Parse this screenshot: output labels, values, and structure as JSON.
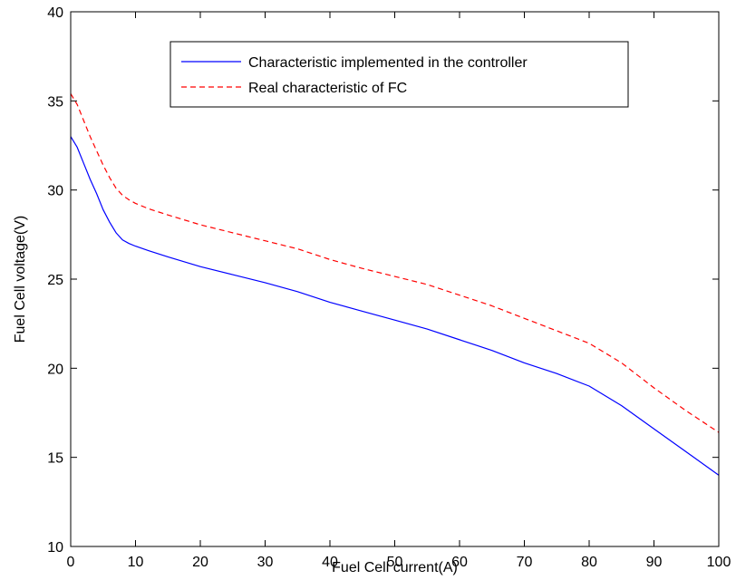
{
  "chart_data": {
    "type": "line",
    "title": "",
    "xlabel": "Fuel Cell current(A)",
    "ylabel": "Fuel Cell voltage(V)",
    "xlim": [
      0,
      100
    ],
    "ylim": [
      10,
      40
    ],
    "xticks": [
      0,
      10,
      20,
      30,
      40,
      50,
      60,
      70,
      80,
      90,
      100
    ],
    "yticks": [
      10,
      15,
      20,
      25,
      30,
      35,
      40
    ],
    "grid": false,
    "legend_position": "top-center",
    "series": [
      {
        "name": "Characteristic implemented in the controller",
        "color": "#0000ff",
        "dash": "solid",
        "x": [
          0,
          1,
          2,
          3,
          4,
          5,
          6,
          7,
          8,
          9,
          10,
          12,
          15,
          20,
          25,
          30,
          35,
          40,
          45,
          50,
          55,
          60,
          65,
          70,
          75,
          80,
          85,
          90,
          95,
          100
        ],
        "y": [
          33.0,
          32.4,
          31.5,
          30.6,
          29.8,
          28.9,
          28.2,
          27.6,
          27.2,
          27.0,
          26.85,
          26.6,
          26.25,
          25.7,
          25.25,
          24.8,
          24.3,
          23.7,
          23.2,
          22.7,
          22.2,
          21.6,
          21.0,
          20.3,
          19.7,
          19.0,
          17.9,
          16.6,
          15.3,
          14.0
        ]
      },
      {
        "name": "Real characteristic of FC",
        "color": "#ff0000",
        "dash": "dashed",
        "x": [
          0,
          1,
          2,
          3,
          4,
          5,
          6,
          7,
          8,
          9,
          10,
          12,
          15,
          20,
          25,
          30,
          35,
          40,
          45,
          50,
          55,
          60,
          65,
          70,
          75,
          80,
          85,
          90,
          95,
          100
        ],
        "y": [
          35.4,
          34.8,
          33.9,
          33.0,
          32.2,
          31.4,
          30.7,
          30.1,
          29.7,
          29.45,
          29.25,
          28.95,
          28.6,
          28.05,
          27.6,
          27.15,
          26.7,
          26.1,
          25.6,
          25.15,
          24.7,
          24.1,
          23.5,
          22.8,
          22.1,
          21.4,
          20.3,
          18.9,
          17.6,
          16.4
        ]
      }
    ]
  }
}
